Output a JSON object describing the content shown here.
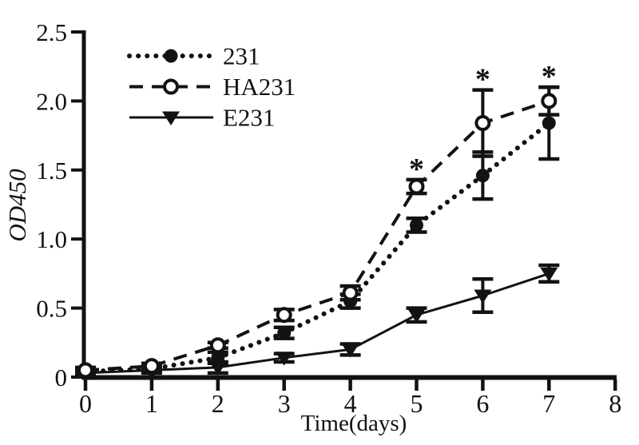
{
  "figure": {
    "background": "#ffffff",
    "ink": "#121212"
  },
  "chart_data": {
    "type": "line",
    "title": "",
    "xlabel": "Time(days)",
    "ylabel": "OD450",
    "xlim": [
      0,
      8
    ],
    "ylim": [
      0,
      2.5
    ],
    "xticks": [
      0,
      1,
      2,
      3,
      4,
      5,
      6,
      7,
      8
    ],
    "ytick_values": [
      0,
      0.5,
      1.0,
      1.5,
      2.0,
      2.5
    ],
    "ytick_labels": [
      "0",
      "0.5",
      "1.0",
      "1.5",
      "2.0",
      "2.5"
    ],
    "grid": false,
    "legend_position": "upper-left-inside",
    "x": [
      0,
      1,
      2,
      3,
      4,
      5,
      6,
      7
    ],
    "draw_order": [
      0,
      2,
      1
    ],
    "series": [
      {
        "name": "231",
        "line": "dotted",
        "marker": "filled-circle",
        "values": [
          0.04,
          0.06,
          0.14,
          0.32,
          0.55,
          1.1,
          1.46,
          1.84
        ],
        "errors": [
          0.02,
          0.02,
          0.04,
          0.04,
          0.05,
          0.05,
          0.17,
          0.26
        ]
      },
      {
        "name": "HA231",
        "line": "dashed",
        "marker": "open-circle",
        "values": [
          0.05,
          0.08,
          0.23,
          0.45,
          0.61,
          1.38,
          1.84,
          2.0
        ],
        "errors": [
          0.02,
          0.02,
          0.02,
          0.04,
          0.05,
          0.05,
          0.24,
          0.1
        ]
      },
      {
        "name": "E231",
        "line": "solid",
        "marker": "filled-triangle-down",
        "values": [
          0.03,
          0.05,
          0.07,
          0.14,
          0.2,
          0.45,
          0.59,
          0.75
        ],
        "errors": [
          0.01,
          0.02,
          0.04,
          0.03,
          0.04,
          0.05,
          0.12,
          0.06
        ]
      }
    ],
    "annotations": [
      {
        "text": "*",
        "x": 5,
        "above_series": "HA231"
      },
      {
        "text": "*",
        "x": 6,
        "above_series": "HA231"
      },
      {
        "text": "*",
        "x": 7,
        "above_series": "HA231"
      }
    ]
  }
}
